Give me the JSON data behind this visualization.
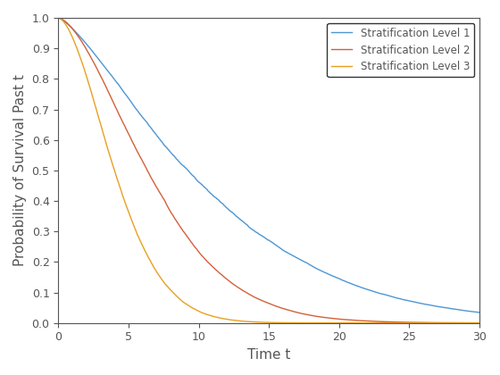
{
  "title": "",
  "xlabel": "Time t",
  "ylabel": "Probability of Survival Past t",
  "xlim": [
    0,
    30
  ],
  "ylim": [
    0,
    1
  ],
  "xticks": [
    0,
    5,
    10,
    15,
    20,
    25,
    30
  ],
  "yticks": [
    0,
    0.1,
    0.2,
    0.3,
    0.4,
    0.5,
    0.6,
    0.7,
    0.8,
    0.9,
    1.0
  ],
  "lines": [
    {
      "label": "Stratification Level 1",
      "color": "#4e96d4",
      "scale": 12.0,
      "shape": 1.35,
      "noise_seed": 42,
      "noise_amp": 0.012
    },
    {
      "label": "Stratification Level 2",
      "color": "#d4603a",
      "scale": 8.0,
      "shape": 1.6,
      "noise_seed": 123,
      "noise_amp": 0.012
    },
    {
      "label": "Stratification Level 3",
      "color": "#e8a020",
      "scale": 5.0,
      "shape": 1.7,
      "noise_seed": 77,
      "noise_amp": 0.012
    }
  ],
  "legend_loc": "upper right",
  "background_color": "#ffffff",
  "tick_color": "#555555",
  "figsize": [
    5.6,
    4.2
  ],
  "dpi": 100
}
